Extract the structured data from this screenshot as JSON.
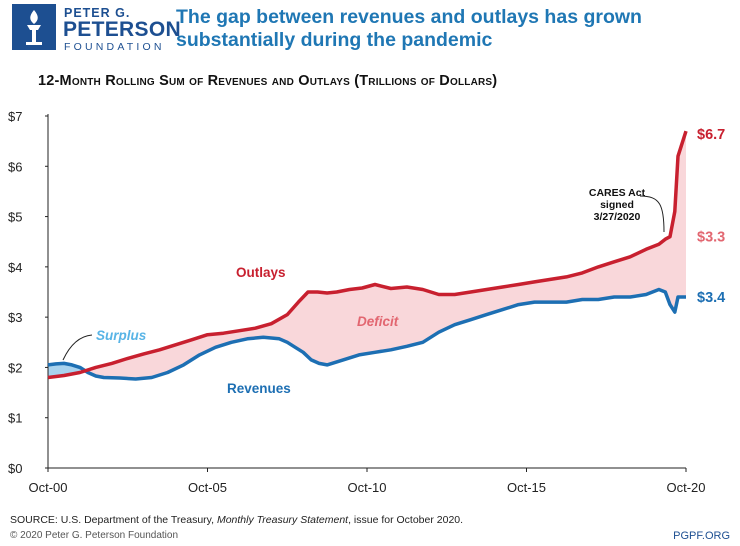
{
  "logo": {
    "line1": "PETER G.",
    "line2": "PETERSON",
    "line3": "FOUNDATION"
  },
  "headline": "The gap between revenues and outlays has grown substantially during the pandemic",
  "source": {
    "prefix": "SOURCE: U.S. Department of the Treasury, ",
    "publication": "Monthly Treasury Statement",
    "suffix": ", issue for October 2020."
  },
  "copyright": "© 2020 Peter G. Peterson Foundation",
  "website": "PGPF.ORG",
  "colors": {
    "outlays": "#c8202f",
    "revenues": "#1d6fb3",
    "deficit_fill": "#f9d7da",
    "surplus_fill": "#a9d3ee",
    "deficit_label": "#e26670",
    "surplus_label": "#58b4e6"
  },
  "chart_data": {
    "type": "line",
    "title": "12-Month Rolling Sum of Revenues and Outlays (Trillions of Dollars)",
    "xlabel": "",
    "ylabel": "",
    "x_ticks": [
      "Oct-00",
      "Oct-05",
      "Oct-10",
      "Oct-15",
      "Oct-20"
    ],
    "y_ticks": [
      "$0",
      "$1",
      "$2",
      "$3",
      "$4",
      "$5",
      "$6",
      "$7"
    ],
    "ylim": [
      0,
      7
    ],
    "xlim": [
      2000.75,
      2020.75
    ],
    "series": [
      {
        "name": "Outlays",
        "x": [
          2000.75,
          2001.25,
          2001.75,
          2002.25,
          2002.75,
          2003.25,
          2003.75,
          2004.25,
          2004.75,
          2005.25,
          2005.75,
          2006.25,
          2006.75,
          2007.25,
          2007.75,
          2008.25,
          2008.6,
          2008.9,
          2009.2,
          2009.5,
          2009.8,
          2010.2,
          2010.6,
          2011.0,
          2011.5,
          2012.0,
          2012.5,
          2013.0,
          2013.5,
          2014.0,
          2014.5,
          2015.0,
          2015.5,
          2016.0,
          2016.5,
          2017.0,
          2017.5,
          2018.0,
          2018.5,
          2019.0,
          2019.5,
          2019.9,
          2020.1,
          2020.25,
          2020.4,
          2020.5,
          2020.6,
          2020.75
        ],
        "values": [
          1.8,
          1.84,
          1.9,
          2.0,
          2.08,
          2.18,
          2.27,
          2.35,
          2.45,
          2.55,
          2.65,
          2.68,
          2.73,
          2.78,
          2.87,
          3.05,
          3.3,
          3.5,
          3.5,
          3.48,
          3.5,
          3.55,
          3.58,
          3.65,
          3.57,
          3.6,
          3.55,
          3.45,
          3.45,
          3.5,
          3.55,
          3.6,
          3.65,
          3.7,
          3.75,
          3.8,
          3.88,
          4.0,
          4.1,
          4.2,
          4.35,
          4.45,
          4.55,
          4.6,
          5.1,
          6.2,
          6.4,
          6.7
        ]
      },
      {
        "name": "Revenues",
        "x": [
          2000.75,
          2001.0,
          2001.25,
          2001.5,
          2001.75,
          2002.0,
          2002.25,
          2002.5,
          2003.0,
          2003.5,
          2004.0,
          2004.5,
          2005.0,
          2005.5,
          2006.0,
          2006.5,
          2007.0,
          2007.5,
          2008.0,
          2008.25,
          2008.5,
          2008.75,
          2009.0,
          2009.25,
          2009.5,
          2009.75,
          2010.0,
          2010.5,
          2011.0,
          2011.5,
          2012.0,
          2012.5,
          2013.0,
          2013.5,
          2014.0,
          2014.5,
          2015.0,
          2015.5,
          2016.0,
          2016.5,
          2017.0,
          2017.5,
          2018.0,
          2018.5,
          2019.0,
          2019.5,
          2019.9,
          2020.1,
          2020.25,
          2020.4,
          2020.5,
          2020.75
        ],
        "values": [
          2.05,
          2.07,
          2.08,
          2.05,
          2.0,
          1.9,
          1.83,
          1.8,
          1.79,
          1.77,
          1.8,
          1.9,
          2.05,
          2.25,
          2.4,
          2.5,
          2.57,
          2.6,
          2.57,
          2.5,
          2.4,
          2.3,
          2.15,
          2.08,
          2.05,
          2.1,
          2.15,
          2.25,
          2.3,
          2.35,
          2.42,
          2.5,
          2.7,
          2.85,
          2.95,
          3.05,
          3.15,
          3.25,
          3.3,
          3.3,
          3.3,
          3.35,
          3.35,
          3.4,
          3.4,
          3.45,
          3.55,
          3.5,
          3.25,
          3.1,
          3.4,
          3.4
        ]
      }
    ],
    "annotations": {
      "outlays_label": "Outlays",
      "revenues_label": "Revenues",
      "deficit_label": "Deficit",
      "surplus_label": "Surplus",
      "end_outlays": "$6.7",
      "end_deficit": "$3.3",
      "end_revenues": "$3.4",
      "cares_act": [
        "CARES Act",
        "signed",
        "3/27/2020"
      ]
    }
  }
}
